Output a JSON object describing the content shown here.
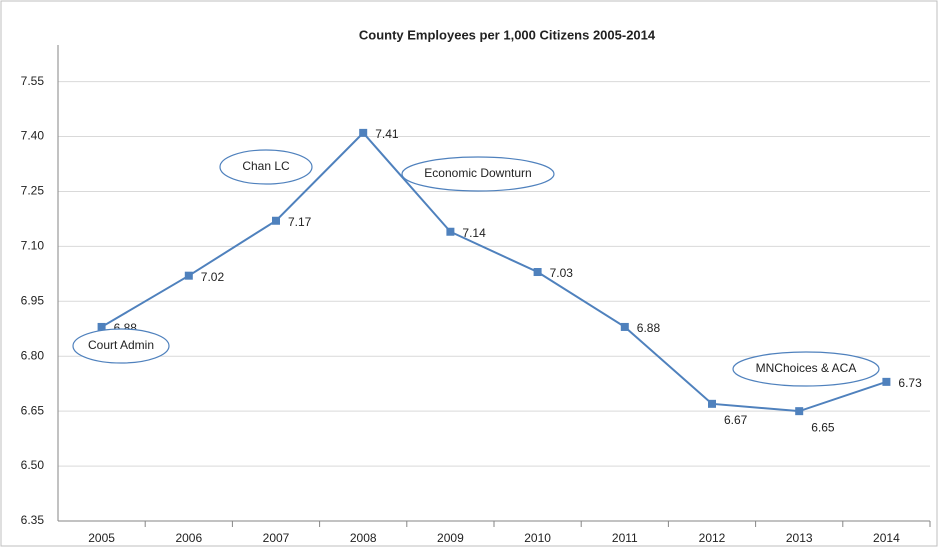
{
  "chart_data": {
    "type": "line",
    "title": "County Employees per 1,000 Citizens 2005-2014",
    "categories": [
      "2005",
      "2006",
      "2007",
      "2008",
      "2009",
      "2010",
      "2011",
      "2012",
      "2013",
      "2014"
    ],
    "series": [
      {
        "name": "County Employees per 1,000 Citizens",
        "color": "#4f81bd",
        "values": [
          6.88,
          7.02,
          7.17,
          7.41,
          7.14,
          7.03,
          6.88,
          6.67,
          6.65,
          6.73
        ]
      }
    ],
    "ylim": [
      6.35,
      7.65
    ],
    "yticks": [
      {
        "value": 6.35,
        "label": "6.35"
      },
      {
        "value": 6.5,
        "label": "6.50"
      },
      {
        "value": 6.65,
        "label": "6.65"
      },
      {
        "value": 6.8,
        "label": "6.80"
      },
      {
        "value": 6.95,
        "label": "6.95"
      },
      {
        "value": 7.1,
        "label": "7.10"
      },
      {
        "value": 7.25,
        "label": "7.25"
      },
      {
        "value": 7.4,
        "label": "7.40"
      },
      {
        "value": 7.55,
        "label": "7.55"
      }
    ],
    "grid": true,
    "annotations": [
      "Court Admin",
      "Chan LC",
      "Economic Downturn",
      "MNChoices & ACA"
    ]
  }
}
